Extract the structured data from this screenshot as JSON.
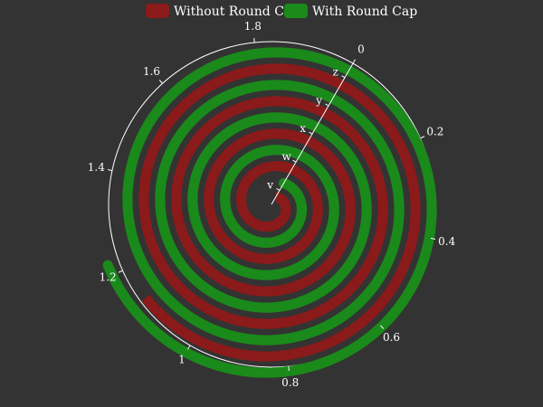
{
  "chart_data": {
    "type": "polar-bar",
    "angle_axis": {
      "min": 0,
      "max": 2,
      "start_angle_deg": 60,
      "clockwise": true,
      "ticks": [
        "0",
        "0.2",
        "0.4",
        "0.6",
        "0.8",
        "1",
        "1.2",
        "1.4",
        "1.6",
        "1.8"
      ]
    },
    "radius_axis": {
      "categories": [
        "v",
        "w",
        "x",
        "y",
        "z"
      ]
    },
    "series": [
      {
        "name": "Without Round Cap",
        "color": "#8b1a1a",
        "round_cap": false,
        "values": [
          2,
          2,
          2,
          2,
          1.13
        ]
      },
      {
        "name": "With Round Cap",
        "color": "#1a8a1a",
        "round_cap": true,
        "values": [
          2,
          2,
          2,
          2,
          1.22
        ]
      }
    ],
    "legend": {
      "position": "top-center"
    }
  }
}
